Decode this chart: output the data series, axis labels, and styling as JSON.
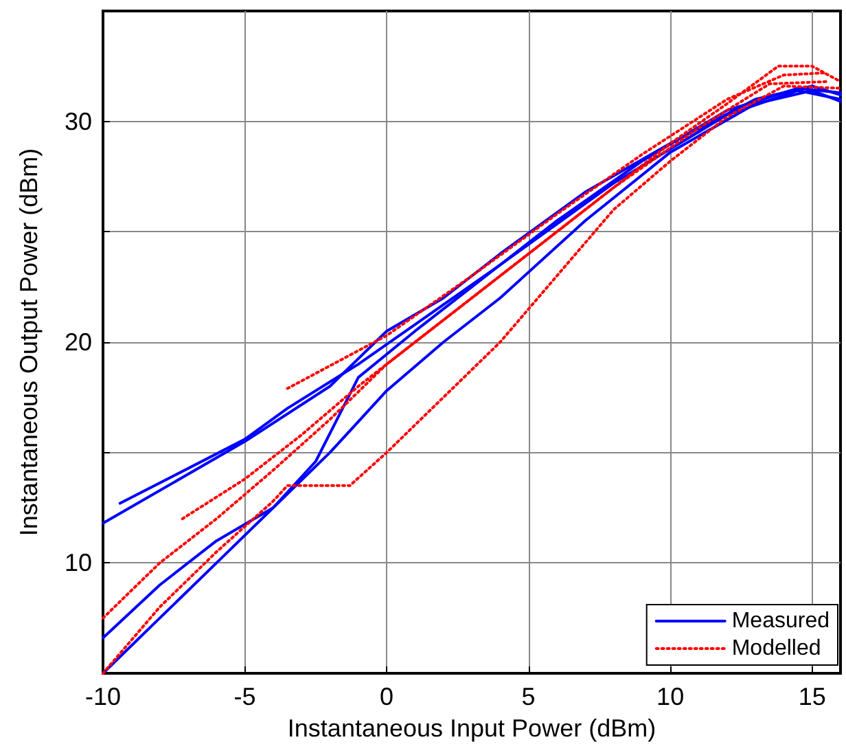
{
  "chart_data": {
    "type": "line",
    "xlabel": "Instantaneous Input Power (dBm)",
    "ylabel": "Instantaneous Output Power (dBm)",
    "xlim": [
      -10,
      16
    ],
    "ylim": [
      5,
      35
    ],
    "xticks": [
      -10,
      -5,
      0,
      5,
      10,
      15
    ],
    "yticks": [
      10,
      {
        "value": 15,
        "label": null
      },
      20,
      {
        "value": 25,
        "label": null
      },
      30
    ],
    "grid": true,
    "legend": "bottom right",
    "marker": "none",
    "series": [
      {
        "name": "Measured",
        "color": "#0000ff",
        "line_style": "solid",
        "x": [
          -10,
          -5,
          -2,
          0,
          2,
          4,
          7,
          10,
          13,
          15,
          16
        ],
        "values": [
          11.8,
          15.5,
          18,
          20.5,
          22,
          24,
          26.8,
          29,
          31,
          31.6,
          31.2
        ]
      },
      {
        "color": "#0000ff",
        "line_style": "solid",
        "x": [
          -9.4,
          -5,
          -3.5,
          -1,
          1,
          4,
          8,
          12,
          14.5,
          16
        ],
        "values": [
          12.7,
          15.6,
          17,
          19,
          20.8,
          23.5,
          27.2,
          30.3,
          31.4,
          31
        ]
      },
      {
        "color": "#0000ff",
        "line_style": "solid",
        "x": [
          -10,
          -8,
          -6,
          -4,
          -2,
          0,
          2,
          4,
          7,
          10,
          13,
          15,
          16
        ],
        "values": [
          5,
          7.5,
          10,
          12.5,
          15,
          17.8,
          20,
          22,
          25.5,
          28.6,
          30.8,
          31.4,
          30.9
        ]
      },
      {
        "color": "#0000ff",
        "line_style": "solid",
        "x": [
          -10,
          -8,
          -6,
          -4,
          -2.5,
          -1,
          1,
          3,
          6,
          9,
          12,
          14.5,
          16
        ],
        "values": [
          6.6,
          9,
          11,
          12.5,
          14.6,
          18.4,
          20.5,
          22.5,
          25.5,
          28.2,
          30.5,
          31.5,
          31.3
        ]
      },
      {
        "name": "Modelled",
        "color": "#ff0000",
        "line_style": "dotted",
        "x": [
          -10,
          -8,
          -6,
          -4,
          -2,
          0,
          2,
          4,
          7,
          10,
          12,
          13.8,
          15,
          16
        ],
        "values": [
          7.5,
          10,
          12,
          14.2,
          16.5,
          19,
          21,
          23,
          26,
          29,
          30.8,
          32.5,
          32.5,
          31.8
        ]
      },
      {
        "color": "#ff0000",
        "line_style": "dotted",
        "x": [
          -3.5,
          0,
          3,
          6,
          9,
          12,
          14,
          15.5
        ],
        "values": [
          17.9,
          20.3,
          23,
          25.8,
          28.5,
          31,
          32.1,
          32.2
        ]
      },
      {
        "color": "#ff0000",
        "line_style": "dotted",
        "x": [
          -10,
          -8,
          -6,
          -4,
          -3.5,
          -1.3,
          0,
          2,
          4,
          6,
          8,
          10,
          12,
          14,
          16
        ],
        "values": [
          5,
          8,
          10.5,
          12.8,
          13.5,
          13.5,
          15,
          17.5,
          20,
          23,
          26,
          28.2,
          30.2,
          31.6,
          31.5
        ]
      },
      {
        "color": "#ff0000",
        "line_style": "dotted",
        "x": [
          -7.2,
          -5,
          -3,
          -1,
          1,
          3,
          5,
          8,
          11,
          13.5,
          15.5
        ],
        "values": [
          12,
          13.8,
          15.8,
          18,
          20,
          22,
          24,
          27,
          29.7,
          31.7,
          31.8
        ]
      }
    ]
  }
}
